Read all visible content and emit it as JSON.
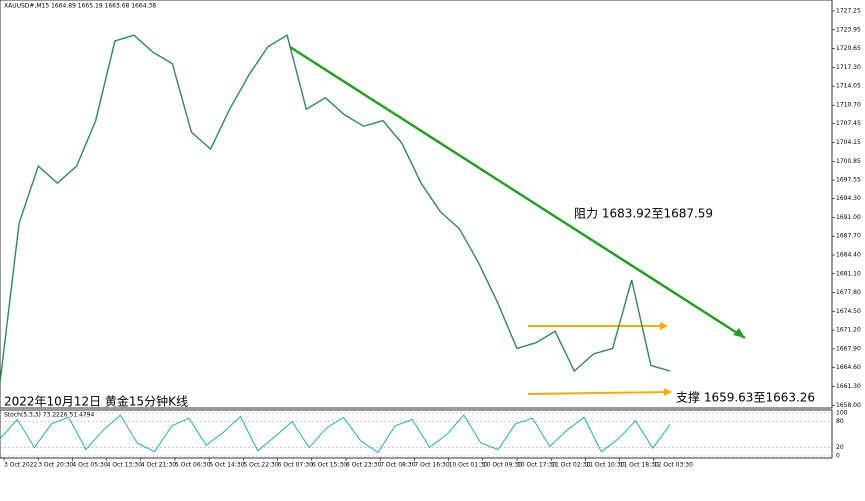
{
  "chart_data": {
    "type": "line",
    "header": "XAUUSD#,M15 1664.89 1665.19 1663.68 1664.38",
    "title": "2022年10月12日 黄金15分钟K线",
    "resistance_label": "阻力 1683.92至1687.59",
    "support_label": "支撑 1659.63至1663.26",
    "x_labels": [
      "3 Oct 2022",
      "3 Oct 20:30",
      "4 Oct 05:30",
      "4 Oct 13:30",
      "4 Oct 21:30",
      "5 Oct 06:30",
      "5 Oct 14:30",
      "5 Oct 22:30",
      "6 Oct 07:30",
      "6 Oct 15:30",
      "6 Oct 23:30",
      "7 Oct 08:30",
      "7 Oct 16:30",
      "10 Oct 01:30",
      "10 Oct 09:30",
      "10 Oct 17:30",
      "11 Oct 02:30",
      "11 Oct 10:30",
      "11 Oct 18:30",
      "12 Oct 03:30"
    ],
    "series": [
      {
        "name": "XAUUSD#",
        "color": "#2e8b57",
        "values": [
          1662,
          1690,
          1700,
          1697,
          1700,
          1708,
          1722,
          1723,
          1720,
          1718,
          1706,
          1703,
          1710,
          1716,
          1721,
          1723,
          1710,
          1712,
          1709,
          1707,
          1708,
          1704,
          1697,
          1692,
          1689,
          1683,
          1676,
          1668,
          1669,
          1671,
          1664,
          1667,
          1668,
          1680,
          1665,
          1664
        ]
      }
    ],
    "ylim": [
      1657.7,
      1728.3
    ],
    "yticks": [
      {
        "value": 1658.0,
        "label": "1658.00"
      },
      {
        "value": 1661.3,
        "label": "1661.30"
      },
      {
        "value": 1664.6,
        "label": "1664.60"
      },
      {
        "value": 1667.9,
        "label": "1667.90"
      },
      {
        "value": 1671.2,
        "label": "1671.20"
      },
      {
        "value": 1674.5,
        "label": "1674.50"
      },
      {
        "value": 1677.8,
        "label": "1677.80"
      },
      {
        "value": 1681.1,
        "label": "1681.10"
      },
      {
        "value": 1684.4,
        "label": "1684.40"
      },
      {
        "value": 1687.7,
        "label": "1687.70"
      },
      {
        "value": 1691.0,
        "label": "1691.00"
      },
      {
        "value": 1694.3,
        "label": "1694.30"
      },
      {
        "value": 1697.55,
        "label": "1697.55"
      },
      {
        "value": 1700.85,
        "label": "1700.85"
      },
      {
        "value": 1704.15,
        "label": "1704.15"
      },
      {
        "value": 1707.45,
        "label": "1707.45"
      },
      {
        "value": 1710.7,
        "label": "1710.70"
      },
      {
        "value": 1714.05,
        "label": "1714.05"
      },
      {
        "value": 1717.3,
        "label": "1717.30"
      },
      {
        "value": 1720.65,
        "label": "1720.65"
      },
      {
        "value": 1723.95,
        "label": "1723.95"
      },
      {
        "value": 1727.25,
        "label": "1727.25"
      }
    ],
    "stoch": {
      "label": "Stoch(5,3,3) 73.2226 51.4794",
      "color": "#20b2aa",
      "values": [
        40,
        85,
        20,
        75,
        90,
        15,
        60,
        95,
        30,
        10,
        70,
        88,
        25,
        55,
        92,
        12,
        45,
        80,
        20,
        65,
        90,
        35,
        8,
        70,
        85,
        20,
        50,
        95,
        30,
        15,
        75,
        88,
        22,
        60,
        90,
        10,
        40,
        82,
        18,
        73
      ],
      "ylim": [
        0,
        100
      ],
      "yticks": [
        0,
        20,
        80,
        100
      ]
    }
  }
}
